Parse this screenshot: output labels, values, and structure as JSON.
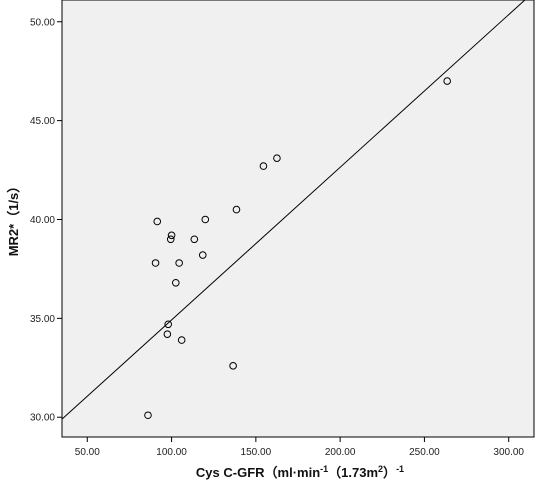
{
  "chart_data": {
    "type": "scatter",
    "title": "",
    "xlabel": "Cys C-GFR（ml·min",
    "xlabel_sup1": "-1",
    "xlabel_mid": "（1.73m",
    "xlabel_sup2": "2",
    "xlabel_end": "）",
    "xlabel_sup3": "-1",
    "ylabel": "MR2*（1/s）",
    "xlim": [
      35,
      315
    ],
    "ylim": [
      29,
      51.1
    ],
    "xticks": [
      50,
      100,
      150,
      200,
      250,
      300
    ],
    "yticks": [
      30,
      35,
      40,
      45,
      50
    ],
    "xtick_labels": [
      "50.00",
      "100.00",
      "150.00",
      "200.00",
      "250.00",
      "300.00"
    ],
    "ytick_labels": [
      "30.00",
      "35.00",
      "40.00",
      "45.00",
      "50.00"
    ],
    "grid": false,
    "points": [
      {
        "x": 86.0,
        "y": 30.1
      },
      {
        "x": 90.5,
        "y": 37.8
      },
      {
        "x": 91.5,
        "y": 39.9
      },
      {
        "x": 97.5,
        "y": 34.2
      },
      {
        "x": 98.0,
        "y": 34.7
      },
      {
        "x": 99.5,
        "y": 39.0
      },
      {
        "x": 100.0,
        "y": 39.2
      },
      {
        "x": 102.5,
        "y": 36.8
      },
      {
        "x": 104.5,
        "y": 37.8
      },
      {
        "x": 106.0,
        "y": 33.9
      },
      {
        "x": 113.5,
        "y": 39.0
      },
      {
        "x": 118.5,
        "y": 38.2
      },
      {
        "x": 120.0,
        "y": 40.0
      },
      {
        "x": 136.5,
        "y": 32.6
      },
      {
        "x": 138.5,
        "y": 40.5
      },
      {
        "x": 154.5,
        "y": 42.7
      },
      {
        "x": 162.5,
        "y": 43.1
      },
      {
        "x": 263.5,
        "y": 47.0
      }
    ],
    "fit_line": {
      "intercept": 27.2,
      "slope": 0.0772
    },
    "colors": {
      "plot_bg": "#f0f0f0",
      "marker": "#000000",
      "line": "#000000"
    }
  }
}
